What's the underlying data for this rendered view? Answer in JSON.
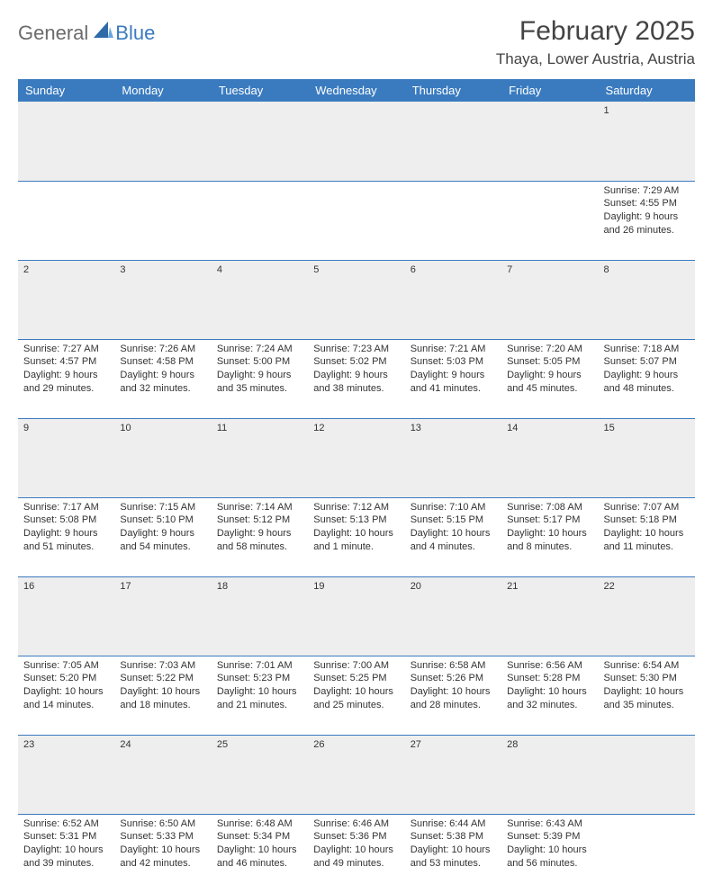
{
  "logo": {
    "part1": "General",
    "part2": "Blue"
  },
  "header": {
    "title": "February 2025",
    "location": "Thaya, Lower Austria, Austria"
  },
  "calendar": {
    "header_bg": "#3a7bbf",
    "header_fg": "#ffffff",
    "daynum_bg": "#eeeeee",
    "divider_color": "#3a7bbf",
    "font_family": "Arial, Helvetica, sans-serif",
    "body_fontsize": 11,
    "daynum_fontsize": 13,
    "columns": [
      "Sunday",
      "Monday",
      "Tuesday",
      "Wednesday",
      "Thursday",
      "Friday",
      "Saturday"
    ],
    "weeks": [
      [
        null,
        null,
        null,
        null,
        null,
        null,
        {
          "d": "1",
          "sr": "7:29 AM",
          "ss": "4:55 PM",
          "dl": "9 hours and 26 minutes."
        }
      ],
      [
        {
          "d": "2",
          "sr": "7:27 AM",
          "ss": "4:57 PM",
          "dl": "9 hours and 29 minutes."
        },
        {
          "d": "3",
          "sr": "7:26 AM",
          "ss": "4:58 PM",
          "dl": "9 hours and 32 minutes."
        },
        {
          "d": "4",
          "sr": "7:24 AM",
          "ss": "5:00 PM",
          "dl": "9 hours and 35 minutes."
        },
        {
          "d": "5",
          "sr": "7:23 AM",
          "ss": "5:02 PM",
          "dl": "9 hours and 38 minutes."
        },
        {
          "d": "6",
          "sr": "7:21 AM",
          "ss": "5:03 PM",
          "dl": "9 hours and 41 minutes."
        },
        {
          "d": "7",
          "sr": "7:20 AM",
          "ss": "5:05 PM",
          "dl": "9 hours and 45 minutes."
        },
        {
          "d": "8",
          "sr": "7:18 AM",
          "ss": "5:07 PM",
          "dl": "9 hours and 48 minutes."
        }
      ],
      [
        {
          "d": "9",
          "sr": "7:17 AM",
          "ss": "5:08 PM",
          "dl": "9 hours and 51 minutes."
        },
        {
          "d": "10",
          "sr": "7:15 AM",
          "ss": "5:10 PM",
          "dl": "9 hours and 54 minutes."
        },
        {
          "d": "11",
          "sr": "7:14 AM",
          "ss": "5:12 PM",
          "dl": "9 hours and 58 minutes."
        },
        {
          "d": "12",
          "sr": "7:12 AM",
          "ss": "5:13 PM",
          "dl": "10 hours and 1 minute."
        },
        {
          "d": "13",
          "sr": "7:10 AM",
          "ss": "5:15 PM",
          "dl": "10 hours and 4 minutes."
        },
        {
          "d": "14",
          "sr": "7:08 AM",
          "ss": "5:17 PM",
          "dl": "10 hours and 8 minutes."
        },
        {
          "d": "15",
          "sr": "7:07 AM",
          "ss": "5:18 PM",
          "dl": "10 hours and 11 minutes."
        }
      ],
      [
        {
          "d": "16",
          "sr": "7:05 AM",
          "ss": "5:20 PM",
          "dl": "10 hours and 14 minutes."
        },
        {
          "d": "17",
          "sr": "7:03 AM",
          "ss": "5:22 PM",
          "dl": "10 hours and 18 minutes."
        },
        {
          "d": "18",
          "sr": "7:01 AM",
          "ss": "5:23 PM",
          "dl": "10 hours and 21 minutes."
        },
        {
          "d": "19",
          "sr": "7:00 AM",
          "ss": "5:25 PM",
          "dl": "10 hours and 25 minutes."
        },
        {
          "d": "20",
          "sr": "6:58 AM",
          "ss": "5:26 PM",
          "dl": "10 hours and 28 minutes."
        },
        {
          "d": "21",
          "sr": "6:56 AM",
          "ss": "5:28 PM",
          "dl": "10 hours and 32 minutes."
        },
        {
          "d": "22",
          "sr": "6:54 AM",
          "ss": "5:30 PM",
          "dl": "10 hours and 35 minutes."
        }
      ],
      [
        {
          "d": "23",
          "sr": "6:52 AM",
          "ss": "5:31 PM",
          "dl": "10 hours and 39 minutes."
        },
        {
          "d": "24",
          "sr": "6:50 AM",
          "ss": "5:33 PM",
          "dl": "10 hours and 42 minutes."
        },
        {
          "d": "25",
          "sr": "6:48 AM",
          "ss": "5:34 PM",
          "dl": "10 hours and 46 minutes."
        },
        {
          "d": "26",
          "sr": "6:46 AM",
          "ss": "5:36 PM",
          "dl": "10 hours and 49 minutes."
        },
        {
          "d": "27",
          "sr": "6:44 AM",
          "ss": "5:38 PM",
          "dl": "10 hours and 53 minutes."
        },
        {
          "d": "28",
          "sr": "6:43 AM",
          "ss": "5:39 PM",
          "dl": "10 hours and 56 minutes."
        },
        null
      ]
    ]
  },
  "labels": {
    "sunrise": "Sunrise: ",
    "sunset": "Sunset: ",
    "daylight": "Daylight: "
  }
}
